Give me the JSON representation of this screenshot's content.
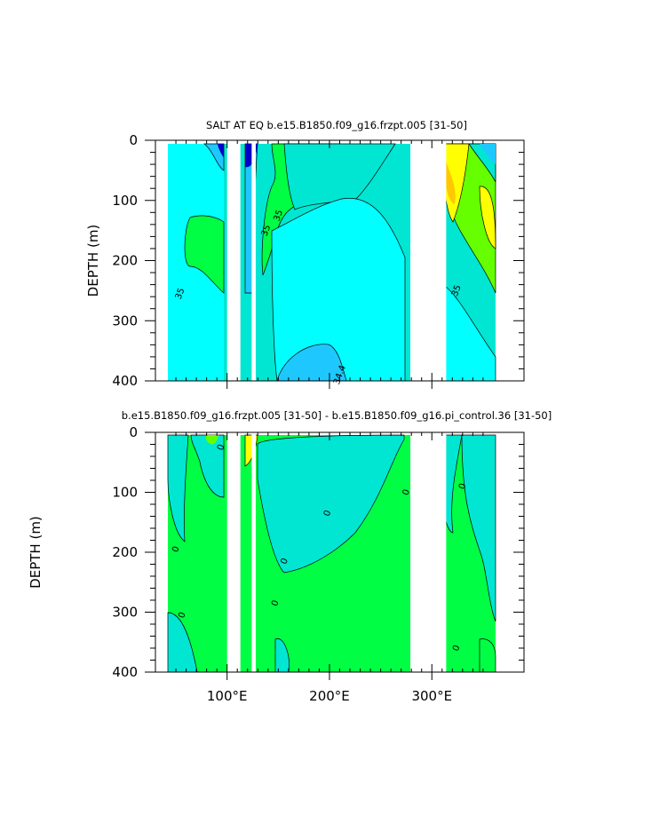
{
  "chart_data": [
    {
      "type": "contour",
      "title": "SALT AT EQ b.e15.B1850.f09_g16.frzpt.005 [31-50]",
      "ylabel": "DEPTH (m)",
      "xlabel": "",
      "ylim": [
        400,
        0
      ],
      "xlim": [
        30,
        390
      ],
      "y_ticks": [
        0,
        100,
        200,
        300,
        400
      ],
      "x_ticks": [
        100,
        200,
        300
      ],
      "x_tick_labels": [],
      "contour_labels": [
        {
          "text": "35",
          "x": 150,
          "y": 125
        },
        {
          "text": "35",
          "x": 138,
          "y": 150
        },
        {
          "text": "35",
          "x": 54,
          "y": 255
        },
        {
          "text": "35",
          "x": 324,
          "y": 250
        },
        {
          "text": "34.4",
          "x": 210,
          "y": 390
        }
      ],
      "land_gaps_lon": [
        [
          100,
          113
        ],
        [
          124,
          128
        ],
        [
          279,
          314
        ],
        [
          367,
          390
        ]
      ],
      "colors": {
        "background": "#00FFFF",
        "mid": "#00E6D2",
        "high": "#00FF44",
        "higher": "#66FF00",
        "top": "#FFFF00",
        "low": "#1EC8FF",
        "deep": "#0000C8"
      }
    },
    {
      "type": "contour",
      "title": "b.e15.B1850.f09_g16.frzpt.005 [31-50] - b.e15.B1850.f09_g16.pi_control.36 [31-50]",
      "ylabel": "DEPTH (m)",
      "xlabel": "",
      "ylim": [
        400,
        0
      ],
      "xlim": [
        30,
        390
      ],
      "y_ticks": [
        0,
        100,
        200,
        300,
        400
      ],
      "x_ticks": [
        100,
        200,
        300
      ],
      "x_tick_labels": [
        "100°E",
        "200°E",
        "300°E"
      ],
      "contour_labels": [
        {
          "text": "0",
          "x": 94,
          "y": 25
        },
        {
          "text": "0",
          "x": 50,
          "y": 195
        },
        {
          "text": "0",
          "x": 56,
          "y": 305
        },
        {
          "text": "0",
          "x": 198,
          "y": 135
        },
        {
          "text": "0",
          "x": 156,
          "y": 215
        },
        {
          "text": "0",
          "x": 147,
          "y": 285
        },
        {
          "text": "0",
          "x": 275,
          "y": 100
        },
        {
          "text": "0",
          "x": 330,
          "y": 90
        },
        {
          "text": "0",
          "x": 324,
          "y": 360
        }
      ],
      "land_gaps_lon": [
        [
          100,
          113
        ],
        [
          124,
          128
        ],
        [
          279,
          314
        ],
        [
          367,
          390
        ]
      ],
      "colors": {
        "background": "#00FFFF",
        "mid": "#00E6D2",
        "high": "#00FF44",
        "top": "#FFFF00"
      }
    }
  ]
}
